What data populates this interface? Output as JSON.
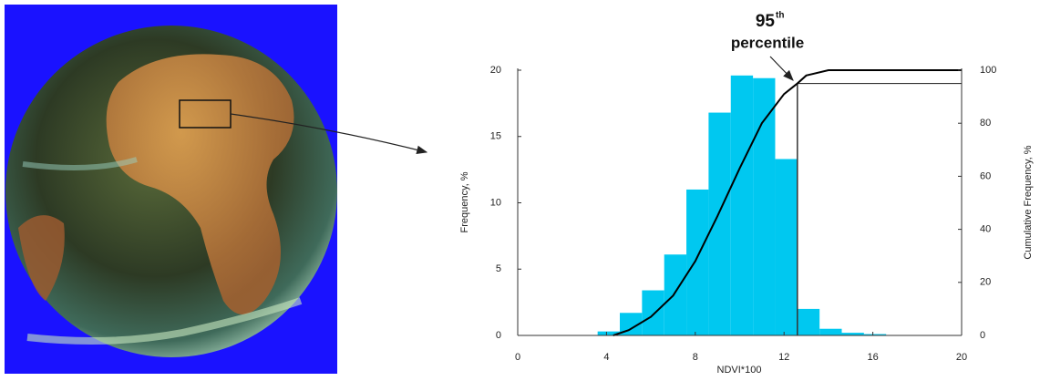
{
  "chart_data": {
    "type": "histogram",
    "xlabel": "NDVI*100",
    "ylabel": "Frequency, %",
    "y2label": "Cumulative Frequency, %",
    "xlim": [
      0,
      20
    ],
    "ylim": [
      0,
      20
    ],
    "y2lim": [
      0,
      100
    ],
    "xticks": [
      0,
      4,
      8,
      12,
      16,
      20
    ],
    "yticks": [
      0,
      5,
      10,
      15,
      20
    ],
    "y2ticks": [
      0,
      20,
      40,
      60,
      80,
      100
    ],
    "bins": [
      3.6,
      4.6,
      5.6,
      6.6,
      7.6,
      8.6,
      9.6,
      10.6,
      11.6,
      12.6,
      13.6,
      14.6,
      15.6,
      16.6
    ],
    "values": [
      0.3,
      1.7,
      3.4,
      6.1,
      11.0,
      16.8,
      19.6,
      19.4,
      13.3,
      2.0,
      0.5,
      0.2,
      0.1
    ],
    "color": "#00c8f0",
    "cumulative": {
      "axis": "y2",
      "color": "#000000",
      "x": [
        4.3,
        5,
        6,
        7,
        8,
        9,
        10,
        11,
        12,
        12.6,
        13,
        14,
        20
      ],
      "values": [
        0,
        2,
        7,
        15,
        28,
        45,
        63,
        80,
        91,
        95,
        98,
        100,
        100
      ]
    },
    "percentile": {
      "x": 12.6,
      "y": 95,
      "label": "95",
      "label_sup": "th",
      "label_line2": "percentile"
    }
  }
}
